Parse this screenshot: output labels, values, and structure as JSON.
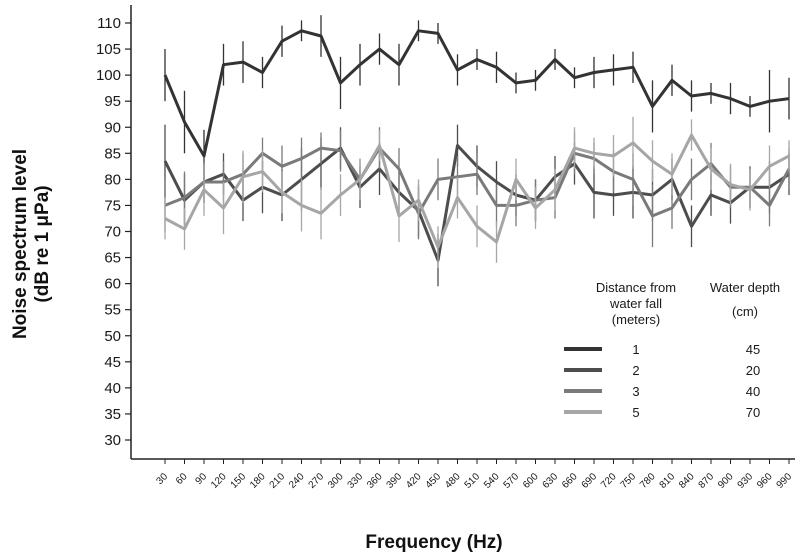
{
  "chart_data": {
    "type": "line",
    "xlabel": "Frequency (Hz)",
    "ylabel_line1": "Noise spectrum level",
    "ylabel_line2": "(dB re 1 μPa)",
    "x": [
      30,
      60,
      90,
      120,
      150,
      180,
      210,
      240,
      270,
      300,
      330,
      360,
      390,
      420,
      450,
      480,
      510,
      540,
      570,
      600,
      630,
      660,
      690,
      720,
      750,
      780,
      810,
      840,
      870,
      900,
      930,
      960,
      990
    ],
    "ylim": [
      30,
      110
    ],
    "yticks": [
      30,
      35,
      40,
      45,
      50,
      55,
      60,
      65,
      70,
      75,
      80,
      85,
      90,
      95,
      100,
      105,
      110
    ],
    "error_bars": true,
    "legend": {
      "position": "bottom-right",
      "col_distance_header": [
        "Distance from",
        "water fall",
        "(meters)"
      ],
      "col_depth_header": [
        "Water depth",
        "(cm)"
      ],
      "rows": [
        {
          "distance": "1",
          "depth": "45"
        },
        {
          "distance": "2",
          "depth": "20"
        },
        {
          "distance": "3",
          "depth": "40"
        },
        {
          "distance": "5",
          "depth": "70"
        }
      ]
    },
    "series": [
      {
        "color": "#333333",
        "values": [
          100,
          91,
          84.5,
          102,
          102.5,
          100.5,
          106.5,
          108.5,
          107.5,
          98.5,
          102,
          105,
          102,
          108.5,
          108,
          101,
          103,
          101.5,
          98.5,
          99,
          103,
          99.5,
          100.5,
          101,
          101.5,
          94,
          99,
          96,
          96.5,
          95.5,
          94,
          95,
          95.5
        ],
        "errors": [
          5,
          6,
          5,
          4,
          4,
          3,
          3,
          2,
          4,
          5,
          4,
          3,
          4,
          2,
          2,
          3,
          2,
          3,
          2,
          2,
          2,
          2,
          3,
          3,
          3,
          5,
          3,
          3,
          2,
          3,
          2,
          6,
          4
        ]
      },
      {
        "color": "#4d4d4d",
        "values": [
          83.5,
          76,
          79.5,
          81,
          76,
          78.5,
          77,
          80,
          83,
          86,
          78.5,
          82,
          77.5,
          74,
          64.5,
          86.5,
          82.5,
          79.5,
          77,
          76,
          80.5,
          83,
          77.5,
          77,
          77.5,
          77,
          80,
          71,
          77,
          75.5,
          78.5,
          78.5,
          81
        ],
        "errors": [
          7,
          5,
          4,
          4,
          4,
          5,
          5,
          6,
          5,
          4,
          4,
          5,
          4,
          5,
          5,
          4,
          4,
          4,
          4,
          4,
          4,
          4,
          5,
          4,
          5,
          5,
          4,
          4,
          4,
          4,
          4,
          5,
          4
        ]
      },
      {
        "color": "#7a7a7a",
        "values": [
          75,
          76.5,
          79.5,
          79.5,
          81,
          85,
          82.5,
          84,
          86,
          85.5,
          80,
          86,
          82,
          73.5,
          80,
          80.5,
          81,
          75,
          75,
          76,
          76.5,
          85,
          84,
          81.5,
          80,
          73,
          74.5,
          80,
          83,
          78.5,
          78.5,
          75,
          82
        ],
        "errors": [
          5,
          5,
          4,
          4,
          4,
          3,
          4,
          4,
          3,
          4,
          4,
          4,
          4,
          5,
          4,
          4,
          4,
          4,
          4,
          4,
          4,
          4,
          3,
          4,
          5,
          6,
          4,
          4,
          4,
          4,
          4,
          4,
          4
        ]
      },
      {
        "color": "#a6a6a6",
        "values": [
          72.5,
          70.5,
          78,
          74.5,
          80.5,
          81.5,
          77.5,
          75,
          73.5,
          77,
          80,
          86.5,
          73,
          76,
          67,
          76.5,
          71,
          68,
          80,
          74.5,
          78,
          86,
          85,
          84.5,
          87,
          83.5,
          81,
          88.5,
          82,
          79,
          78,
          82.5,
          84.5
        ],
        "errors": [
          4,
          4,
          5,
          5,
          5,
          4,
          4,
          5,
          5,
          4,
          4,
          3,
          5,
          4,
          4,
          4,
          4,
          4,
          4,
          4,
          4,
          4,
          3,
          4,
          5,
          4,
          4,
          3,
          4,
          4,
          4,
          4,
          3
        ]
      }
    ]
  }
}
